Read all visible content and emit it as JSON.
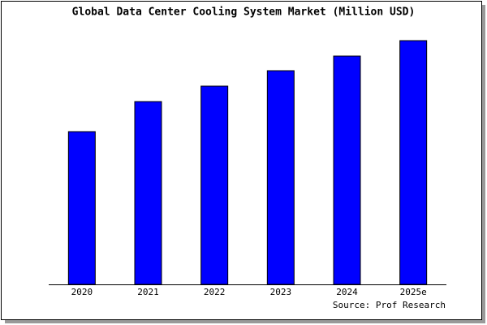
{
  "chart_data": {
    "type": "bar",
    "title": "Global Data Center Cooling System Market (Million USD)",
    "categories": [
      "2020",
      "2021",
      "2022",
      "2023",
      "2024",
      "2025e"
    ],
    "values": [
      188,
      225,
      244,
      263,
      281,
      300
    ],
    "color": "#0000ff",
    "source": "Source: Prof Research"
  }
}
